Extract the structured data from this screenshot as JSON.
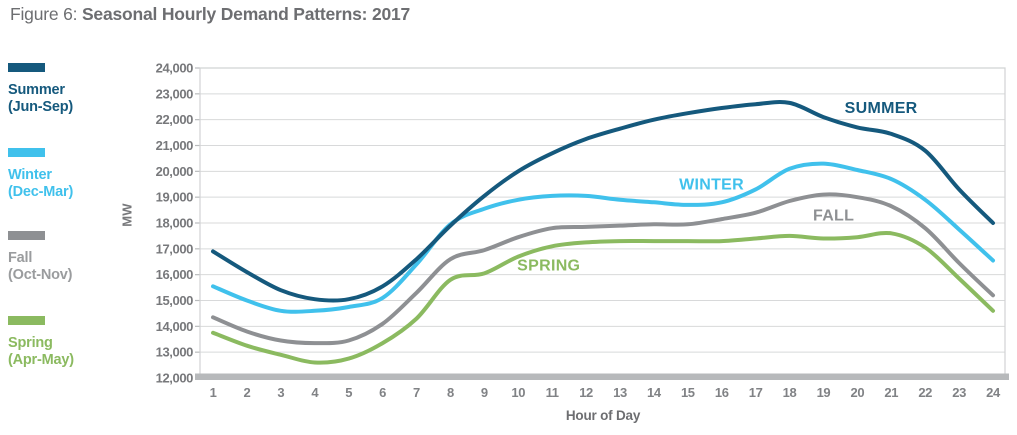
{
  "title": {
    "prefix": "Figure 6:",
    "main": "Seasonal Hourly Demand Patterns: 2017"
  },
  "chart_data": {
    "type": "line",
    "title": "Figure 6: Seasonal Hourly Demand Patterns: 2017",
    "xlabel": "Hour of Day",
    "ylabel": "MW",
    "x": [
      1,
      2,
      3,
      4,
      5,
      6,
      7,
      8,
      9,
      10,
      11,
      12,
      13,
      14,
      15,
      16,
      17,
      18,
      19,
      20,
      21,
      22,
      23,
      24
    ],
    "ylim": [
      12000,
      24000
    ],
    "ytick_step": 1000,
    "grid": "horizontal",
    "legend_position": "left",
    "series": [
      {
        "name": "Summer",
        "sub": "(Jun-Sep)",
        "color": "#15597d",
        "text_color": "#15597d",
        "inchart_label": {
          "text": "SUMMER",
          "hour": 20.7,
          "mw": 22450
        },
        "values": [
          16900,
          16100,
          15400,
          15050,
          15050,
          15550,
          16600,
          17900,
          19050,
          20000,
          20700,
          21250,
          21650,
          22000,
          22250,
          22450,
          22600,
          22650,
          22100,
          21700,
          21450,
          20800,
          19300,
          18000
        ]
      },
      {
        "name": "Winter",
        "sub": "(Dec-Mar)",
        "color": "#40c1ec",
        "text_color": "#40c1ec",
        "inchart_label": {
          "text": "WINTER",
          "hour": 15.7,
          "mw": 19500
        },
        "values": [
          15550,
          15000,
          14600,
          14600,
          14750,
          15100,
          16400,
          17950,
          18550,
          18900,
          19050,
          19050,
          18900,
          18800,
          18700,
          18800,
          19300,
          20100,
          20300,
          20050,
          19700,
          18900,
          17750,
          16550
        ]
      },
      {
        "name": "Fall",
        "sub": "(Oct-Nov)",
        "color": "#8e9093",
        "text_color": "#9a9c9e",
        "inchart_label": {
          "text": "FALL",
          "hour": 19.3,
          "mw": 18300
        },
        "values": [
          14350,
          13800,
          13450,
          13350,
          13450,
          14100,
          15300,
          16600,
          16950,
          17450,
          17800,
          17850,
          17900,
          17950,
          17950,
          18150,
          18400,
          18850,
          19100,
          19000,
          18650,
          17800,
          16450,
          15200
        ]
      },
      {
        "name": "Spring",
        "sub": "(Apr-May)",
        "color": "#8bba60",
        "text_color": "#8bba60",
        "inchart_label": {
          "text": "SPRING",
          "hour": 10.9,
          "mw": 16350
        },
        "values": [
          13750,
          13250,
          12900,
          12600,
          12750,
          13350,
          14300,
          15800,
          16050,
          16700,
          17100,
          17250,
          17300,
          17300,
          17300,
          17300,
          17400,
          17500,
          17400,
          17450,
          17600,
          17050,
          15850,
          14600
        ]
      }
    ],
    "style": {
      "gridline_color": "#d8d9da",
      "border_color": "#d1d3d4",
      "baseline_bar_color": "#b7b9bb",
      "tick_label_color": "#77787b",
      "x_tick_label_color": "#808285"
    }
  }
}
